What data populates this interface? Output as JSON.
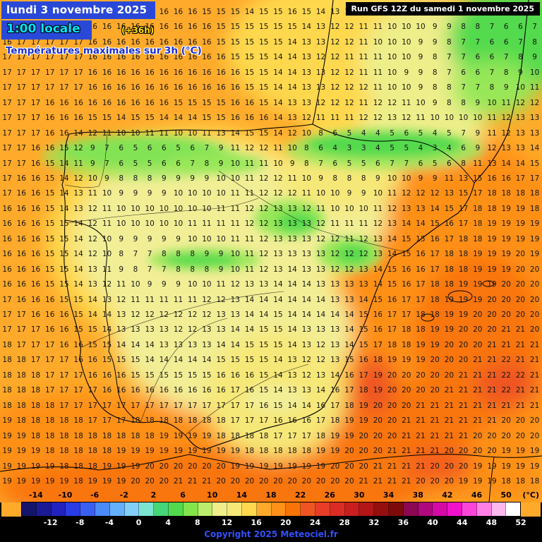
{
  "header": {
    "date_line": "lundi 3 novembre 2025",
    "time_line": "1:00 locale",
    "offset_label": "(+36h)",
    "subtitle": "Températures maximales sur 3h (°C)",
    "run_info": "Run GFS 12Z du samedi 1 novembre 2025",
    "colors": {
      "title_bg": "#2a48d8",
      "date_text": "#ffffff",
      "time_text": "#00e4ff",
      "offset_text": "#ffdf00",
      "subtitle_text": "#1b2fd0"
    }
  },
  "footer": {
    "copyright": "Copyright 2025 Meteociel.fr",
    "copyright_color": "#3450ff"
  },
  "legend": {
    "unit_label": "(°C)",
    "range": [
      -16,
      52
    ],
    "step": 2,
    "top_ticks": [
      -14,
      -10,
      -6,
      -2,
      2,
      6,
      10,
      14,
      18,
      22,
      26,
      30,
      34,
      38,
      42,
      46,
      50
    ],
    "bottom_ticks": [
      -12,
      -8,
      -4,
      0,
      4,
      8,
      12,
      16,
      20,
      24,
      28,
      32,
      36,
      40,
      44,
      48,
      52
    ],
    "colors": [
      "#14146a",
      "#1a1a96",
      "#2222c0",
      "#2a3ce4",
      "#3a60f2",
      "#4c8af8",
      "#64b0fa",
      "#82d0f8",
      "#7ce4d0",
      "#44d678",
      "#52da4e",
      "#84e44c",
      "#bcec6c",
      "#eeee8a",
      "#f6e878",
      "#ffd84e",
      "#ffaa2a",
      "#ff9018",
      "#f97408",
      "#ef5522",
      "#e83e28",
      "#da2c24",
      "#c81f1e",
      "#b21616",
      "#960f0f",
      "#7c0a0a",
      "#8c0852",
      "#b0087e",
      "#d40aa6",
      "#f012c8",
      "#fa46d8",
      "#ff80e4",
      "#ffb8ee",
      "#ffffff"
    ]
  },
  "map": {
    "palette": {
      "sea_orange": "#ffaa2a",
      "warm_orange": "#ff9018",
      "hot_orange": "#f97408",
      "hot_red": "#ef5522",
      "mild_yellow": "#f2ee96",
      "yellow": "#ffd84e",
      "cool_green": "#52da4e",
      "light_green": "#97e759",
      "number_color": "#161616"
    },
    "grid_rows": [
      "16 16 17 17 16 16 16 16 16 16 15 16 16 16 15 15 15 14 15 15 16 15 14 13 12 11 11 10 10 9 10 9 9 8 7 7 5 5",
      "16 16 17 17 17 16 16 16 16 16 16 16 16 16 16 15 15 15 15 15 15 14 13 12 12 11 11 10 10 10 9 9 8 8 7 6 6 7",
      "16 17 17 17 17 17 16 16 16 16 16 16 16 16 16 15 15 15 15 15 14 13 13 12 12 11 10 10 10 9 9 8 7 7 6 6 7 8",
      "17 17 17 17 17 17 16 16 16 16 16 16 16 16 16 16 15 15 15 14 14 13 12 12 11 11 11 10 10 9 8 7 7 6 6 7 8 9",
      "17 17 17 17 17 17 16 16 16 16 16 16 16 16 16 16 16 15 15 14 14 13 13 12 12 11 11 10 9 9 8 7 6 6 7 8 9 10",
      "17 17 17 17 17 17 16 16 16 16 16 16 16 16 16 16 16 15 15 14 14 13 13 12 12 12 11 10 10 9 8 8 7 7 8 9 10 11",
      "17 17 17 16 16 16 16 16 16 16 16 16 15 15 15 15 16 16 15 14 13 13 12 12 12 11 12 12 11 10 9 8 8 9 10 11 12 12",
      "17 17 17 16 16 16 15 15 14 15 15 14 14 14 15 15 16 16 16 14 13 12 11 11 11 12 12 13 12 11 10 10 10 10 11 12 13 13",
      "17 17 17 16 16 14 12 11 10 10 11 11 10 10 11 13 14 15 15 14 12 10 8 6 5 4 4 5 6 5 4 5 7 9 11 12 13 13",
      "17 17 16 16 15 12 9 7 6 5 6 6 5 6 7 9 11 12 12 11 10 8 6 4 3 3 4 5 5 4 3 4 6 9 12 13 13 14",
      "17 17 16 15 14 11 9 7 6 5 5 6 6 7 8 9 10 11 11 10 9 8 7 6 5 5 6 7 7 6 5 6 8 11 13 14 14 15",
      "17 16 16 15 14 12 10 9 8 8 8 9 9 9 9 10 10 11 12 12 11 10 9 8 8 8 9 10 10 9 9 11 13 15 16 16 17 17",
      "17 16 16 15 14 13 11 10 9 9 9 9 10 10 10 10 11 11 12 12 12 11 10 10 9 9 10 11 12 12 12 13 15 17 18 18 18 18",
      "16 16 16 15 14 13 12 11 10 10 10 10 10 10 10 11 11 12 12 13 13 12 11 10 10 10 11 12 13 13 14 15 17 18 18 19 19 18",
      "16 16 16 15 15 14 12 11 10 10 10 10 10 11 11 11 11 12 12 13 13 13 12 11 11 11 12 13 14 14 15 16 17 18 19 19 19 19",
      "16 16 16 15 15 14 12 10 9 9 9 9 9 10 10 10 11 11 12 13 13 13 12 12 11 12 13 14 15 15 16 17 18 18 19 19 19 19",
      "16 16 16 15 15 14 12 10 8 7 7 8 8 8 9 9 10 11 12 13 13 13 13 12 12 12 13 14 15 16 17 18 18 19 19 19 20 19",
      "16 16 16 15 15 14 13 11 9 8 7 7 8 8 8 9 10 11 12 13 14 13 13 12 12 13 14 15 16 16 17 18 18 19 19 19 20 20",
      "16 16 16 15 15 14 13 12 11 10 9 9 9 10 10 11 12 13 13 14 14 14 13 13 13 13 14 15 16 17 18 18 19 19 19 20 20 20",
      "17 16 16 16 15 15 14 13 12 11 11 11 11 11 12 12 13 14 14 14 14 14 14 13 13 14 15 16 17 17 18 19 19 19 20 20 20 20",
      "17 17 16 16 16 15 14 14 13 12 12 12 12 12 12 13 13 14 14 15 14 14 14 14 14 15 16 17 17 18 18 19 19 20 20 20 20 20",
      "17 17 17 16 16 15 15 14 13 13 13 13 12 12 13 13 14 14 15 15 14 13 13 13 14 15 16 17 18 18 19 19 20 20 20 21 21 20",
      "18 17 17 17 16 16 15 15 14 14 14 13 13 13 13 14 14 15 15 15 14 13 12 13 14 15 17 18 18 19 19 20 20 20 21 21 21 21",
      "18 18 17 17 17 16 16 15 15 15 14 14 14 14 14 15 15 15 15 14 13 12 12 13 15 16 18 19 19 19 20 20 20 21 21 22 21 21",
      "18 18 18 17 17 17 16 16 16 15 15 15 15 15 15 16 16 16 15 14 13 12 13 14 16 17 19 20 20 20 20 20 21 21 21 22 22 21",
      "18 18 18 17 17 17 17 16 16 16 16 16 16 16 16 16 17 16 15 14 13 13 14 16 17 18 19 20 20 20 20 21 21 21 21 22 21 21",
      "18 18 18 18 17 17 17 17 17 17 17 17 17 17 17 17 17 17 16 15 14 14 16 17 18 19 20 20 20 21 21 21 21 21 21 21 21 21",
      "19 18 18 18 18 18 17 17 17 18 18 18 18 18 18 18 17 17 17 16 16 16 17 18 19 19 20 20 21 21 21 21 21 21 21 20 20 20",
      "19 19 18 18 18 18 18 18 18 18 18 19 19 19 19 18 18 18 18 17 17 17 18 19 19 20 20 20 21 21 21 21 21 20 20 20 20 20",
      "19 19 19 18 18 18 18 18 19 19 19 19 19 19 19 19 19 18 18 18 18 18 19 19 20 20 20 21 21 21 21 20 20 20 20 19 19 19",
      "19 19 19 19 18 18 18 19 19 19 20 20 20 20 20 20 19 19 19 19 19 19 19 20 20 20 21 21 21 21 20 20 20 19 19 19 19 19",
      "19 19 19 19 19 18 19 19 19 20 20 20 21 21 21 20 20 20 20 20 20 20 20 20 20 21 21 21 21 20 20 20 19 19 19 18 18 18"
    ]
  }
}
